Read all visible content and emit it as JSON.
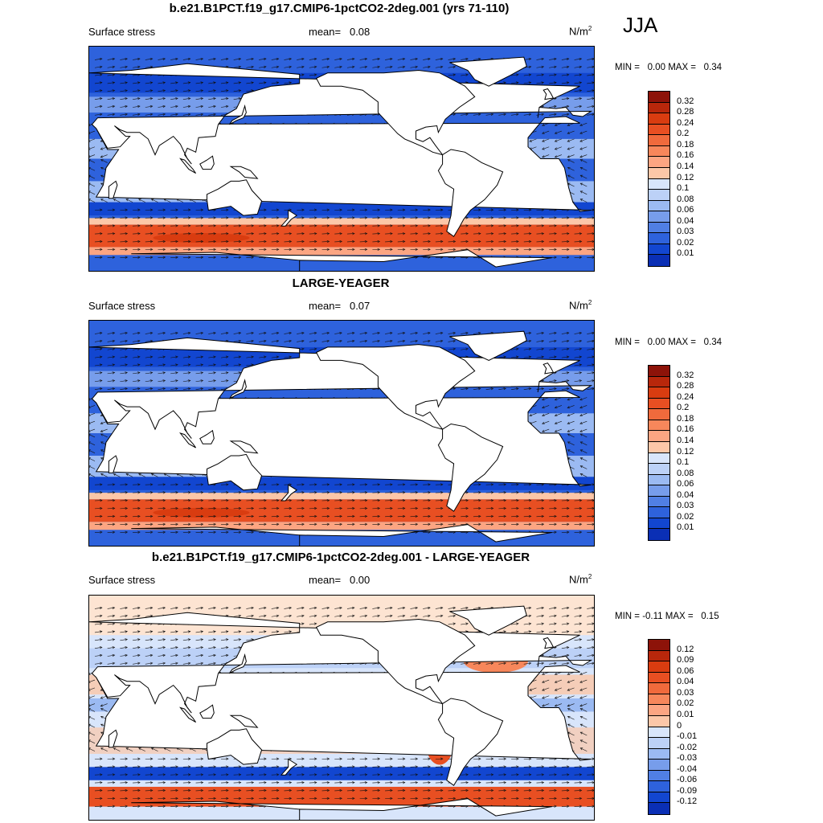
{
  "season": "JJA",
  "colors": {
    "positive": [
      "#fde4d2",
      "#fcc7a8",
      "#fca582",
      "#f7875b",
      "#f06a3c",
      "#e84f22",
      "#d93c10",
      "#b8270b",
      "#8d1309"
    ],
    "negative": [
      "#d8e5fb",
      "#bcd1f7",
      "#9bbaf2",
      "#779deb",
      "#507fe4",
      "#2e62dc",
      "#1246d0",
      "#0a2fb5",
      "#031d8e"
    ],
    "land": "#ffffff",
    "arrow": "#111111"
  },
  "panels": [
    {
      "title": "b.e21.B1PCT.f19_g17.CMIP6-1pctCO2-2deg.001 (yrs 71-110)",
      "variable": "Surface stress",
      "mean_label": "mean=",
      "mean_value": "0.08",
      "units": "N/m",
      "units_sup": "2",
      "min_label": "MIN =",
      "min_value": "0.00",
      "max_label": "MAX =",
      "max_value": "0.34",
      "colorbar_labels": [
        "0.32",
        "0.28",
        "0.24",
        "0.2",
        "0.18",
        "0.16",
        "0.14",
        "0.12",
        "0.1",
        "0.08",
        "0.06",
        "0.04",
        "0.03",
        "0.02",
        "0.01"
      ]
    },
    {
      "title": "LARGE-YEAGER",
      "variable": "Surface stress",
      "mean_label": "mean=",
      "mean_value": "0.07",
      "units": "N/m",
      "units_sup": "2",
      "min_label": "MIN =",
      "min_value": "0.00",
      "max_label": "MAX =",
      "max_value": "0.34",
      "colorbar_labels": [
        "0.32",
        "0.28",
        "0.24",
        "0.2",
        "0.18",
        "0.16",
        "0.14",
        "0.12",
        "0.1",
        "0.08",
        "0.06",
        "0.04",
        "0.03",
        "0.02",
        "0.01"
      ]
    },
    {
      "title": "b.e21.B1PCT.f19_g17.CMIP6-1pctCO2-2deg.001 - LARGE-YEAGER",
      "variable": "Surface stress",
      "mean_label": "mean=",
      "mean_value": "0.00",
      "units": "N/m",
      "units_sup": "2",
      "min_label": "MIN =",
      "min_value": "-0.11",
      "max_label": "MAX =",
      "max_value": "0.15",
      "colorbar_labels": [
        "0.12",
        "0.09",
        "0.06",
        "0.04",
        "0.03",
        "0.02",
        "0.01",
        "0",
        "-0.01",
        "-0.02",
        "-0.03",
        "-0.04",
        "-0.06",
        "-0.09",
        "-0.12"
      ]
    }
  ]
}
